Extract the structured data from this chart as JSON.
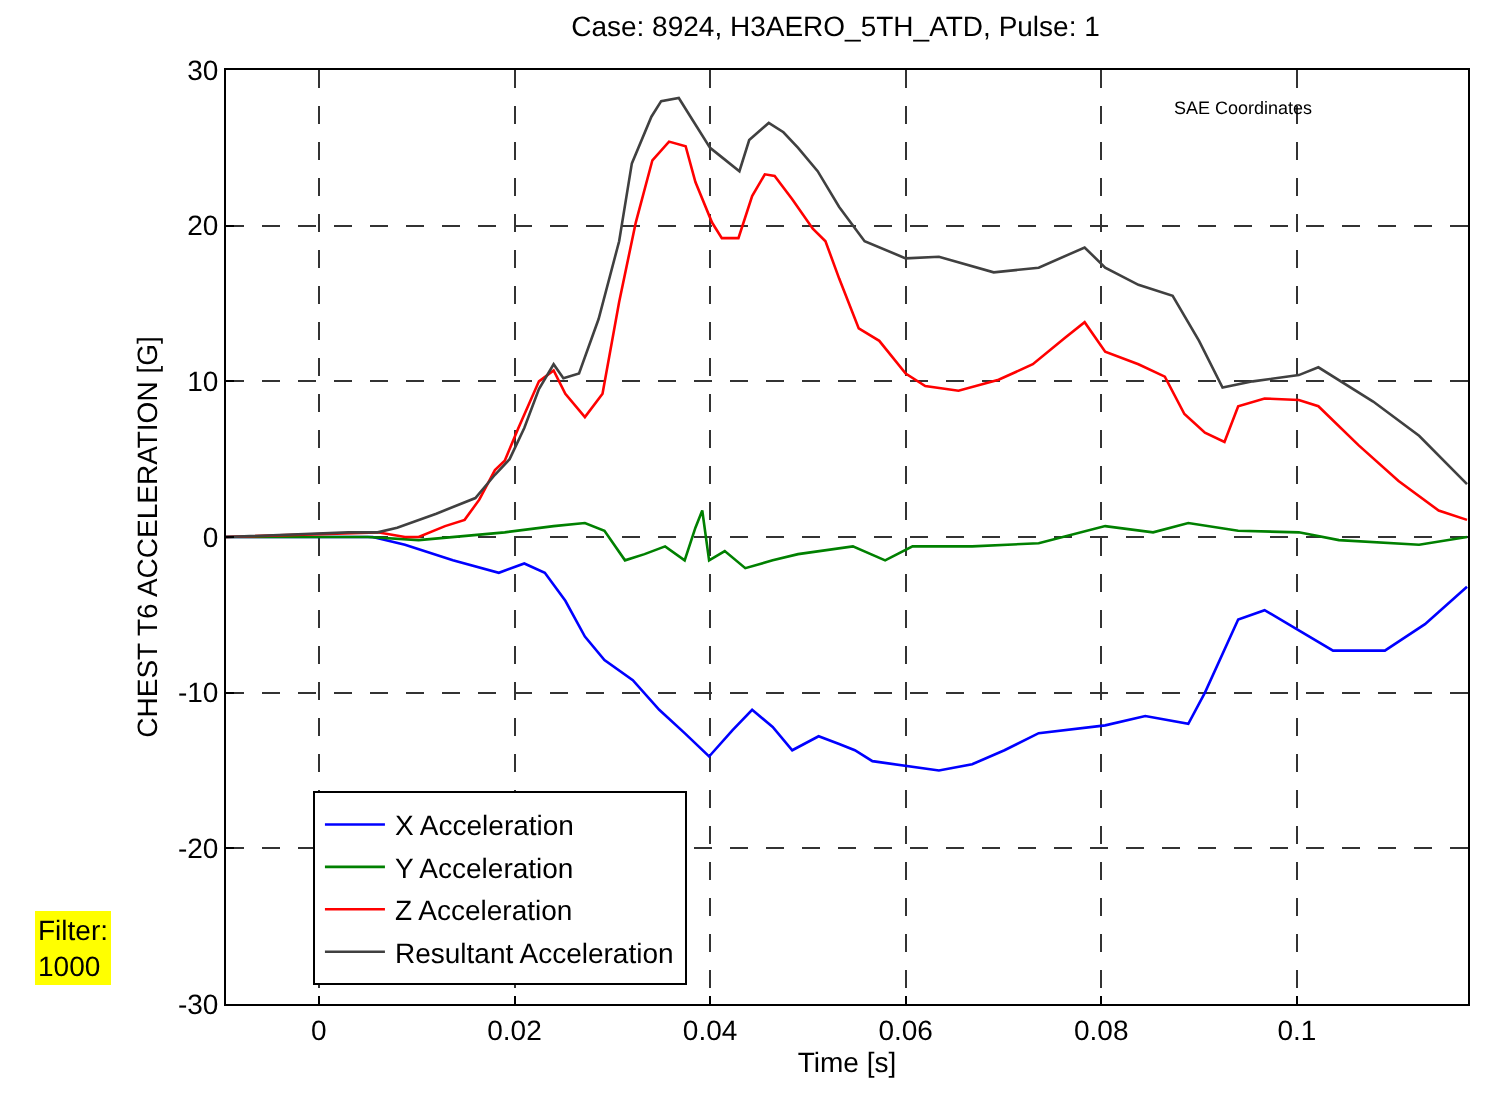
{
  "chart_data": {
    "type": "line",
    "title": "Case: 8924, H3AERO_5TH_ATD, Pulse: 1",
    "xlabel": "Time [s]",
    "ylabel": "CHEST T6 ACCELERATION [G]",
    "annotations": [
      "SAE Coordinates",
      "Filter:\n1000"
    ],
    "xlim": [
      -0.0095,
      0.1175
    ],
    "xticks": [
      0,
      0.02,
      0.04,
      0.06,
      0.08,
      0.1
    ],
    "ylim": [
      -30,
      30
    ],
    "yticks": [
      -30,
      -20,
      -10,
      0,
      10,
      20,
      30
    ],
    "grid": true,
    "legend": "bottom left",
    "marker": "none",
    "line_style": "solid",
    "series": [
      {
        "name": "X Acceleration",
        "color": "#0000ff",
        "x": [
          -0.0095,
          0.0055,
          0.0088,
          0.0137,
          0.0184,
          0.021,
          0.0231,
          0.0252,
          0.0272,
          0.0292,
          0.0321,
          0.0348,
          0.0374,
          0.0399,
          0.0423,
          0.0443,
          0.0464,
          0.0484,
          0.0511,
          0.0532,
          0.0548,
          0.0566,
          0.0634,
          0.0668,
          0.0701,
          0.0736,
          0.0804,
          0.0845,
          0.0889,
          0.0906,
          0.094,
          0.0967,
          0.1002,
          0.1037,
          0.109,
          0.1131,
          0.1174
        ],
        "values": [
          0,
          0,
          -0.5,
          -1.5,
          -2.3,
          -1.7,
          -2.3,
          -4.1,
          -6.4,
          -7.9,
          -9.2,
          -11.1,
          -12.6,
          -14.1,
          -12.4,
          -11.1,
          -12.2,
          -13.7,
          -12.8,
          -13.3,
          -13.7,
          -14.4,
          -15.0,
          -14.6,
          -13.7,
          -12.6,
          -12.1,
          -11.5,
          -12.0,
          -10.0,
          -5.3,
          -4.7,
          -6.0,
          -7.3,
          -7.3,
          -5.6,
          -3.2
        ]
      },
      {
        "name": "Y Acceleration",
        "color": "#008000",
        "x": [
          -0.0095,
          0.005,
          0.0102,
          0.019,
          0.024,
          0.0272,
          0.0292,
          0.0313,
          0.0333,
          0.0354,
          0.0374,
          0.0385,
          0.0392,
          0.0399,
          0.0415,
          0.0436,
          0.0464,
          0.049,
          0.0546,
          0.0579,
          0.0607,
          0.0668,
          0.0736,
          0.0804,
          0.0853,
          0.0889,
          0.094,
          0.1002,
          0.1043,
          0.1125,
          0.1174
        ],
        "values": [
          0,
          0,
          -0.2,
          0.3,
          0.7,
          0.9,
          0.4,
          -1.5,
          -1.1,
          -0.6,
          -1.5,
          0.6,
          1.7,
          -1.5,
          -0.9,
          -2.0,
          -1.5,
          -1.1,
          -0.6,
          -1.5,
          -0.6,
          -0.6,
          -0.4,
          0.7,
          0.3,
          0.9,
          0.4,
          0.3,
          -0.2,
          -0.5,
          0
        ]
      },
      {
        "name": "Z Acceleration",
        "color": "#ff0000",
        "x": [
          -0.0095,
          0.006,
          0.0088,
          0.0102,
          0.0129,
          0.0149,
          0.0164,
          0.018,
          0.019,
          0.0204,
          0.0225,
          0.024,
          0.0252,
          0.0272,
          0.029,
          0.0307,
          0.0324,
          0.0341,
          0.0358,
          0.0375,
          0.0385,
          0.0402,
          0.0412,
          0.0429,
          0.0443,
          0.0456,
          0.0466,
          0.0484,
          0.0505,
          0.0518,
          0.0532,
          0.0552,
          0.0573,
          0.06,
          0.062,
          0.0654,
          0.0695,
          0.073,
          0.0763,
          0.0783,
          0.0804,
          0.0838,
          0.0865,
          0.0885,
          0.0906,
          0.0926,
          0.094,
          0.0967,
          0.1002,
          0.1022,
          0.1063,
          0.1104,
          0.1145,
          0.1174
        ],
        "values": [
          0,
          0.3,
          0,
          0,
          0.7,
          1.1,
          2.4,
          4.3,
          4.9,
          7.0,
          10.0,
          10.7,
          9.2,
          7.7,
          9.2,
          15.1,
          20.2,
          24.2,
          25.4,
          25.1,
          22.8,
          20.2,
          19.2,
          19.2,
          21.9,
          23.3,
          23.2,
          21.7,
          19.8,
          19.0,
          16.6,
          13.4,
          12.6,
          10.5,
          9.7,
          9.4,
          10.1,
          11.1,
          12.8,
          13.8,
          11.9,
          11.1,
          10.3,
          7.9,
          6.7,
          6.1,
          8.4,
          8.9,
          8.8,
          8.4,
          5.9,
          3.6,
          1.7,
          1.1
        ]
      },
      {
        "name": "Resultant Acceleration",
        "color": "#404040",
        "x": [
          -0.0095,
          0.003,
          0.006,
          0.008,
          0.012,
          0.016,
          0.018,
          0.0195,
          0.021,
          0.0225,
          0.024,
          0.025,
          0.0266,
          0.0286,
          0.0307,
          0.032,
          0.034,
          0.035,
          0.0368,
          0.038,
          0.04,
          0.041,
          0.043,
          0.044,
          0.046,
          0.0475,
          0.049,
          0.051,
          0.0532,
          0.0558,
          0.06,
          0.0634,
          0.069,
          0.0736,
          0.0783,
          0.0804,
          0.0838,
          0.0873,
          0.09,
          0.0924,
          0.0955,
          0.1002,
          0.1022,
          0.1078,
          0.1125,
          0.1174
        ],
        "values": [
          0,
          0.3,
          0.3,
          0.6,
          1.5,
          2.5,
          4.0,
          5.0,
          7.0,
          9.5,
          11.1,
          10.2,
          10.5,
          14.0,
          19.0,
          24.0,
          27.0,
          28.0,
          28.2,
          27.0,
          25.0,
          24.5,
          23.5,
          25.5,
          26.6,
          26.0,
          25.0,
          23.5,
          21.2,
          19.0,
          17.9,
          18.0,
          17.0,
          17.3,
          18.6,
          17.3,
          16.2,
          15.5,
          12.6,
          9.6,
          10.0,
          10.4,
          10.9,
          8.7,
          6.5,
          3.4
        ]
      }
    ]
  }
}
